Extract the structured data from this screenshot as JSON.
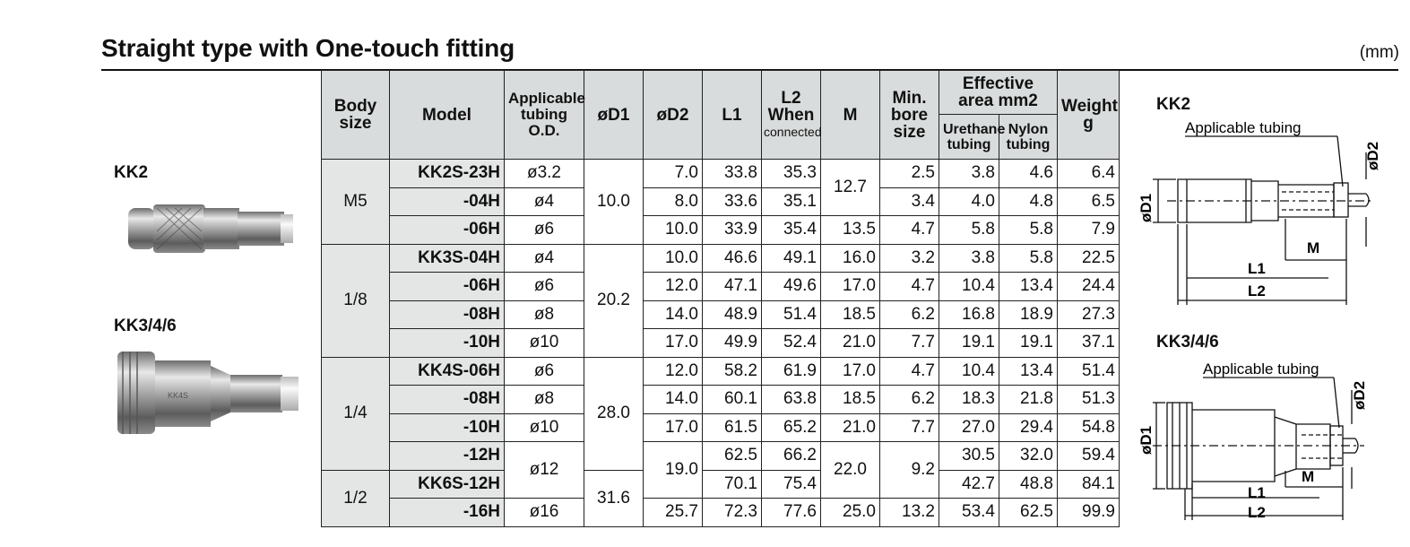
{
  "title": "Straight type with One-touch fitting",
  "unit": "(mm)",
  "products": [
    {
      "label": "KK2"
    },
    {
      "label": "KK3/4/6"
    }
  ],
  "diagrams": [
    {
      "label": "KK2",
      "tubing": "Applicable tubing",
      "d1": "øD1",
      "d2": "øD2",
      "m": "M",
      "l1": "L1",
      "l2": "L2"
    },
    {
      "label": "KK3/4/6",
      "tubing": "Applicable tubing",
      "d1": "øD1",
      "d2": "øD2",
      "m": "M",
      "l1": "L1",
      "l2": "L2"
    }
  ],
  "table": {
    "headers": {
      "body_size": "Body size",
      "model": "Model",
      "tubing": "Applicable tubing O.D.",
      "d1": "øD1",
      "d2": "øD2",
      "l1": "L1",
      "l2": "L2 When",
      "l2_sub": "connected",
      "m": "M",
      "bore": "Min. bore size",
      "eff_area": "Effective area mm2",
      "urethane": "Urethane tubing",
      "nylon": "Nylon tubing",
      "weight": "Weight g"
    },
    "body_sizes": [
      "M5",
      "1/8",
      "1/4",
      "1/2"
    ],
    "d1_values": [
      "10.0",
      "20.2",
      "28.0",
      "31.6"
    ],
    "rows": [
      {
        "model": "KK2S-23H",
        "tubing": "ø3.2",
        "d2": "7.0",
        "l1": "33.8",
        "l2": "35.3",
        "m": "12.7",
        "bore": "2.5",
        "ure": "3.8",
        "nyl": "4.6",
        "w": "6.4"
      },
      {
        "model": "-04H",
        "tubing": "ø4",
        "d2": "8.0",
        "l1": "33.6",
        "l2": "35.1",
        "m": "",
        "bore": "3.4",
        "ure": "4.0",
        "nyl": "4.8",
        "w": "6.5"
      },
      {
        "model": "-06H",
        "tubing": "ø6",
        "d2": "10.0",
        "l1": "33.9",
        "l2": "35.4",
        "m": "13.5",
        "bore": "4.7",
        "ure": "5.8",
        "nyl": "5.8",
        "w": "7.9"
      },
      {
        "model": "KK3S-04H",
        "tubing": "ø4",
        "d2": "10.0",
        "l1": "46.6",
        "l2": "49.1",
        "m": "16.0",
        "bore": "3.2",
        "ure": "3.8",
        "nyl": "5.8",
        "w": "22.5"
      },
      {
        "model": "-06H",
        "tubing": "ø6",
        "d2": "12.0",
        "l1": "47.1",
        "l2": "49.6",
        "m": "17.0",
        "bore": "4.7",
        "ure": "10.4",
        "nyl": "13.4",
        "w": "24.4"
      },
      {
        "model": "-08H",
        "tubing": "ø8",
        "d2": "14.0",
        "l1": "48.9",
        "l2": "51.4",
        "m": "18.5",
        "bore": "6.2",
        "ure": "16.8",
        "nyl": "18.9",
        "w": "27.3"
      },
      {
        "model": "-10H",
        "tubing": "ø10",
        "d2": "17.0",
        "l1": "49.9",
        "l2": "52.4",
        "m": "21.0",
        "bore": "7.7",
        "ure": "19.1",
        "nyl": "19.1",
        "w": "37.1"
      },
      {
        "model": "KK4S-06H",
        "tubing": "ø6",
        "d2": "12.0",
        "l1": "58.2",
        "l2": "61.9",
        "m": "17.0",
        "bore": "4.7",
        "ure": "10.4",
        "nyl": "13.4",
        "w": "51.4"
      },
      {
        "model": "-08H",
        "tubing": "ø8",
        "d2": "14.0",
        "l1": "60.1",
        "l2": "63.8",
        "m": "18.5",
        "bore": "6.2",
        "ure": "18.3",
        "nyl": "21.8",
        "w": "51.3"
      },
      {
        "model": "-10H",
        "tubing": "ø10",
        "d2": "17.0",
        "l1": "61.5",
        "l2": "65.2",
        "m": "21.0",
        "bore": "7.7",
        "ure": "27.0",
        "nyl": "29.4",
        "w": "54.8"
      },
      {
        "model": "-12H",
        "tubing": "ø12",
        "d2": "19.0",
        "l1": "62.5",
        "l2": "66.2",
        "m": "22.0",
        "bore": "9.2",
        "ure": "30.5",
        "nyl": "32.0",
        "w": "59.4"
      },
      {
        "model": "KK6S-12H",
        "tubing": "",
        "d2": "",
        "l1": "70.1",
        "l2": "75.4",
        "m": "",
        "bore": "",
        "ure": "42.7",
        "nyl": "48.8",
        "w": "84.1"
      },
      {
        "model": "-16H",
        "tubing": "ø16",
        "d2": "25.7",
        "l1": "72.3",
        "l2": "77.6",
        "m": "25.0",
        "bore": "13.2",
        "ure": "53.4",
        "nyl": "62.5",
        "w": "99.9"
      }
    ]
  }
}
